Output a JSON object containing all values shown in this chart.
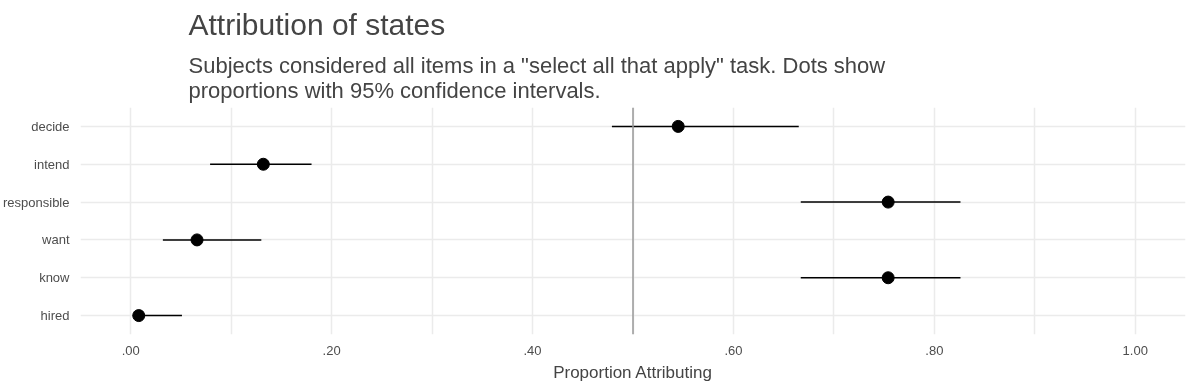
{
  "chart_data": {
    "type": "scatter",
    "title": "Attribution of states",
    "subtitle": "Subjects considered all items in a \"select all that apply\" task. Dots show proportions with 95% confidence intervals.",
    "xlabel": "Proportion Attributing",
    "orientation": "horizontal",
    "color": "#000000",
    "categories": [
      "decide",
      "intend",
      "responsible",
      "want",
      "know",
      "hired"
    ],
    "values": [
      0.545,
      0.132,
      0.754,
      0.066,
      0.754,
      0.008
    ],
    "errors": [
      [
        0.479,
        0.665
      ],
      [
        0.079,
        0.18
      ],
      [
        0.667,
        0.826
      ],
      [
        0.032,
        0.13
      ],
      [
        0.667,
        0.826
      ],
      [
        0.002,
        0.051
      ]
    ],
    "xlim": [
      -0.05,
      1.05
    ],
    "xticks": [
      {
        "value": 0,
        "label": ".00"
      },
      {
        "value": 0.1,
        "label": null
      },
      {
        "value": 0.2,
        "label": ".20"
      },
      {
        "value": 0.3,
        "label": null
      },
      {
        "value": 0.4,
        "label": ".40"
      },
      {
        "value": 0.5,
        "label": null
      },
      {
        "value": 0.6,
        "label": ".60"
      },
      {
        "value": 0.7,
        "label": null
      },
      {
        "value": 0.8,
        "label": ".80"
      },
      {
        "value": 0.9,
        "label": null
      },
      {
        "value": 1.0,
        "label": "1.00"
      }
    ],
    "ref_lines": [
      {
        "axis": "x",
        "value": 0.5,
        "color": "#999999"
      }
    ],
    "grid": true,
    "marker": "circle"
  }
}
